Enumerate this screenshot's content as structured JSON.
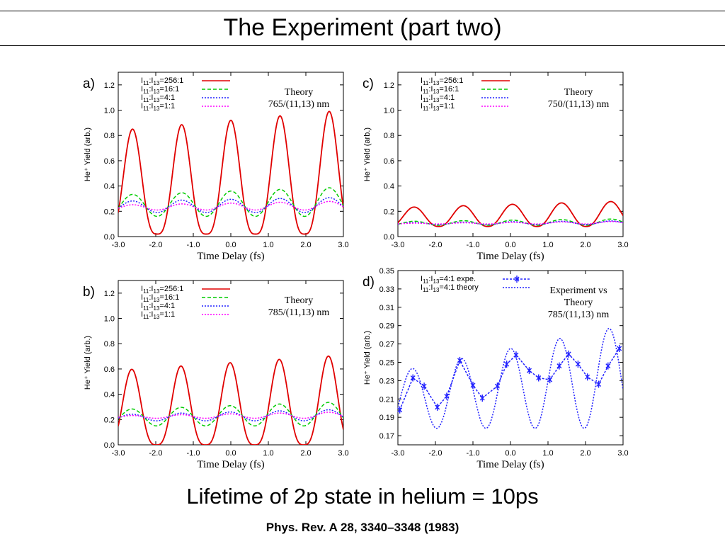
{
  "slide": {
    "title": "The Experiment (part two)",
    "subtitle": "Lifetime of 2p state in helium = 10ps",
    "citation": "Phys. Rev. A 28, 3340–3348 (1983)"
  },
  "chart_data": [
    {
      "panel_label": "a)",
      "type": "line",
      "annotation": [
        "Theory",
        "765/(11,13) nm"
      ],
      "xlabel": "Time Delay (fs)",
      "ylabel": "He⁺ Yield (arb.)",
      "xlim": [
        -3.0,
        3.0
      ],
      "ylim": [
        0.0,
        1.3
      ],
      "xticks": [
        "-3.0",
        "-2.0",
        "-1.0",
        "0.0",
        "1.0",
        "2.0",
        "3.0"
      ],
      "yticks": [
        "0.0",
        "0.2",
        "0.4",
        "0.6",
        "0.8",
        "1.0",
        "1.2"
      ],
      "grid": false,
      "legend_position": "top-left",
      "series": [
        {
          "name": "I11:I13=256:1",
          "color": "#e00000",
          "style": "solid",
          "period": 1.31,
          "peak_x": 0.0,
          "min_y": 0.02,
          "peak_y_start": 0.84,
          "peak_y_end": 1.0,
          "sharpness": 1.6
        },
        {
          "name": "I11:I13=16:1",
          "color": "#00cc00",
          "style": "dashed",
          "period": 1.31,
          "peak_x": 0.0,
          "min_y": 0.16,
          "peak_y_start": 0.33,
          "peak_y_end": 0.39,
          "sharpness": 1.0
        },
        {
          "name": "I11:I13=4:1",
          "color": "#2020ff",
          "style": "dotted",
          "period": 1.31,
          "peak_x": 0.0,
          "min_y": 0.19,
          "peak_y_start": 0.28,
          "peak_y_end": 0.31,
          "sharpness": 1.0
        },
        {
          "name": "I11:I13=1:1",
          "color": "#ff00ff",
          "style": "dotted",
          "period": 1.31,
          "peak_x": 0.0,
          "min_y": 0.21,
          "peak_y_start": 0.25,
          "peak_y_end": 0.28,
          "sharpness": 1.0
        }
      ]
    },
    {
      "panel_label": "c)",
      "type": "line",
      "annotation": [
        "Theory",
        "750/(11,13) nm"
      ],
      "xlabel": "Time Delay (fs)",
      "ylabel": "He⁺ Yield (arb.)",
      "xlim": [
        -3.0,
        3.0
      ],
      "ylim": [
        0.0,
        1.3
      ],
      "xticks": [
        "-3.0",
        "-2.0",
        "-1.0",
        "0.0",
        "1.0",
        "2.0",
        "3.0"
      ],
      "yticks": [
        "0.0",
        "0.2",
        "0.4",
        "0.6",
        "0.8",
        "1.0",
        "1.2"
      ],
      "grid": false,
      "legend_position": "top-left",
      "series": [
        {
          "name": "I11:I13=256:1",
          "color": "#e00000",
          "style": "solid",
          "period": 1.31,
          "peak_x": 0.05,
          "min_y": 0.08,
          "peak_y_start": 0.23,
          "peak_y_end": 0.28,
          "sharpness": 1.2
        },
        {
          "name": "I11:I13=16:1",
          "color": "#00cc00",
          "style": "dashed",
          "period": 1.31,
          "peak_x": 0.05,
          "min_y": 0.09,
          "peak_y_start": 0.12,
          "peak_y_end": 0.14,
          "sharpness": 1.0
        },
        {
          "name": "I11:I13=4:1",
          "color": "#2020ff",
          "style": "dotted",
          "period": 1.31,
          "peak_x": 0.05,
          "min_y": 0.095,
          "peak_y_start": 0.11,
          "peak_y_end": 0.125,
          "sharpness": 1.0
        },
        {
          "name": "I11:I13=1:1",
          "color": "#ff00ff",
          "style": "dotted",
          "period": 1.31,
          "peak_x": 0.05,
          "min_y": 0.1,
          "peak_y_start": 0.105,
          "peak_y_end": 0.12,
          "sharpness": 1.0
        }
      ]
    },
    {
      "panel_label": "b)",
      "type": "line",
      "annotation": [
        "Theory",
        "785/(11,13) nm"
      ],
      "xlabel": "Time Delay (fs)",
      "ylabel": "He⁺ Yield (arb.)",
      "xlim": [
        -3.0,
        3.0
      ],
      "ylim": [
        0.0,
        1.3
      ],
      "xticks": [
        "-3.0",
        "-2.0",
        "-1.0",
        "0.0",
        "1.0",
        "2.0",
        "3.0"
      ],
      "yticks": [
        "0.0",
        "0.2",
        "0.4",
        "0.6",
        "0.8",
        "1.0",
        "1.2"
      ],
      "grid": false,
      "legend_position": "top-left",
      "series": [
        {
          "name": "I11:I13=256:1",
          "color": "#e00000",
          "style": "solid",
          "period": 1.31,
          "peak_x": -0.02,
          "min_y": 0.0,
          "peak_y_start": 0.59,
          "peak_y_end": 0.71,
          "sharpness": 1.6
        },
        {
          "name": "I11:I13=16:1",
          "color": "#00cc00",
          "style": "dashed",
          "period": 1.31,
          "peak_x": -0.02,
          "min_y": 0.15,
          "peak_y_start": 0.28,
          "peak_y_end": 0.34,
          "sharpness": 1.0
        },
        {
          "name": "I11:I13=4:1",
          "color": "#2020ff",
          "style": "dotted",
          "period": 1.31,
          "peak_x": -0.02,
          "min_y": 0.19,
          "peak_y_start": 0.24,
          "peak_y_end": 0.28,
          "sharpness": 1.0
        },
        {
          "name": "I11:I13=1:1",
          "color": "#ff00ff",
          "style": "dotted",
          "period": 1.31,
          "peak_x": -0.02,
          "min_y": 0.21,
          "peak_y_start": 0.23,
          "peak_y_end": 0.26,
          "sharpness": 1.0
        }
      ]
    },
    {
      "panel_label": "d)",
      "type": "line",
      "annotation": [
        "Experiment vs",
        "Theory",
        "785/(11,13) nm"
      ],
      "xlabel": "Time Delay (fs)",
      "ylabel": "He⁺ Yield (arb.)",
      "xlim": [
        -3.0,
        3.0
      ],
      "ylim": [
        0.16,
        0.35
      ],
      "xticks": [
        "-3.0",
        "-2.0",
        "-1.0",
        "0.0",
        "1.0",
        "2.0",
        "3.0"
      ],
      "yticks": [
        "0.17",
        "0.19",
        "0.21",
        "0.23",
        "0.25",
        "0.27",
        "0.29",
        "0.31",
        "0.33",
        "0.35"
      ],
      "grid": false,
      "legend_position": "top-left",
      "series": [
        {
          "name": "I11:I13=4:1 expe.",
          "color": "#2020ff",
          "style": "dashed-markers",
          "x": [
            -2.95,
            -2.6,
            -2.3,
            -1.95,
            -1.7,
            -1.35,
            -1.0,
            -0.75,
            -0.35,
            -0.1,
            0.15,
            0.5,
            0.75,
            1.05,
            1.3,
            1.55,
            1.8,
            2.05,
            2.35,
            2.6,
            2.9
          ],
          "y": [
            0.198,
            0.233,
            0.224,
            0.201,
            0.213,
            0.252,
            0.225,
            0.211,
            0.224,
            0.248,
            0.258,
            0.241,
            0.233,
            0.231,
            0.246,
            0.259,
            0.248,
            0.234,
            0.226,
            0.246,
            0.265
          ]
        },
        {
          "name": "I11:I13=4:1 theory",
          "color": "#2020ff",
          "style": "dotted",
          "period": 1.31,
          "peak_x": 0.0,
          "min_y": 0.178,
          "peak_y_start": 0.24,
          "peak_y_end": 0.29,
          "sharpness": 1.0
        }
      ]
    }
  ]
}
